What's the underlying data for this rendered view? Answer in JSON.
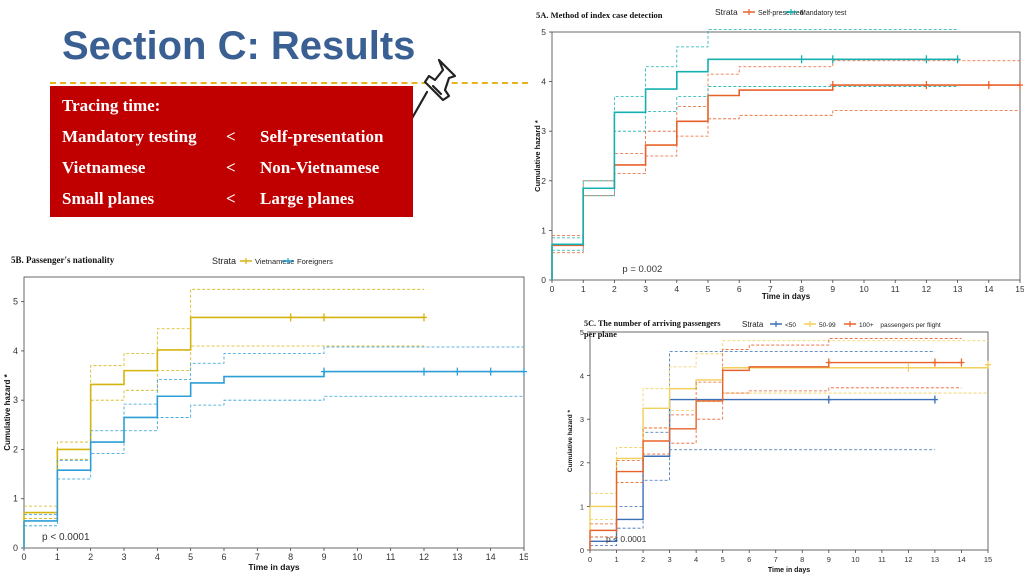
{
  "slide": {
    "title": "Section C: Results",
    "summary": {
      "heading": "Tracing time:",
      "rows": [
        {
          "left": "Mandatory testing",
          "op": "<",
          "right": "Self-presentation"
        },
        {
          "left": "Vietnamese",
          "op": "<",
          "right": "Non-Vietnamese"
        },
        {
          "left": "Small planes",
          "op": "<",
          "right": "Large planes"
        }
      ]
    },
    "colors": {
      "title": "#3a5f93",
      "box": "#c00000",
      "divider": "#e9b21c"
    }
  },
  "chart_data": [
    {
      "id": "5A",
      "type": "line",
      "step": true,
      "title": "5A. Method of index case detection",
      "legend_title": "Strata",
      "legend_position": "top",
      "xlabel": "Time in days",
      "ylabel": "Cumulative hazard *",
      "xlim": [
        0,
        15
      ],
      "ylim": [
        0,
        5
      ],
      "xticks": [
        0,
        1,
        2,
        3,
        4,
        5,
        6,
        7,
        8,
        9,
        10,
        11,
        12,
        13,
        14,
        15
      ],
      "yticks": [
        0,
        1,
        2,
        3,
        4,
        5
      ],
      "annotation": "p = 0.002",
      "series": [
        {
          "name": "Self-presented",
          "color": "#e8622c",
          "x": [
            0,
            1,
            2,
            3,
            4,
            5,
            6,
            9,
            15
          ],
          "y": [
            0.7,
            1.85,
            2.32,
            2.72,
            3.2,
            3.72,
            3.83,
            3.93,
            3.93
          ],
          "lower": [
            0.55,
            1.7,
            2.15,
            2.5,
            2.9,
            3.25,
            3.32,
            3.42,
            3.42
          ],
          "upper": [
            0.9,
            2.0,
            2.55,
            3.0,
            3.5,
            4.15,
            4.3,
            4.42,
            4.42
          ],
          "censor": [
            9,
            12,
            14,
            15
          ]
        },
        {
          "name": "Mandatory test",
          "color": "#17b0b0",
          "x": [
            0,
            1,
            2,
            3,
            4,
            5,
            13
          ],
          "y": [
            0.72,
            1.85,
            3.38,
            3.85,
            4.2,
            4.45,
            4.45
          ],
          "lower": [
            0.6,
            1.7,
            3.0,
            3.4,
            3.7,
            3.9,
            3.9
          ],
          "upper": [
            0.85,
            2.0,
            3.7,
            4.3,
            4.7,
            5.05,
            5.05
          ],
          "censor": [
            8,
            9,
            12,
            13
          ]
        }
      ]
    },
    {
      "id": "5B",
      "type": "line",
      "step": true,
      "title": "5B. Passenger's nationality",
      "legend_title": "Strata",
      "legend_position": "top",
      "xlabel": "Time in days",
      "ylabel": "Cumulative hazard *",
      "xlim": [
        0,
        15
      ],
      "ylim": [
        0,
        5.5
      ],
      "xticks": [
        0,
        1,
        2,
        3,
        4,
        5,
        6,
        7,
        8,
        9,
        10,
        11,
        12,
        13,
        14,
        15
      ],
      "yticks": [
        0,
        1,
        2,
        3,
        4,
        5
      ],
      "annotation": "p < 0.0001",
      "series": [
        {
          "name": "Vietnamese",
          "color": "#d6b40f",
          "x": [
            0,
            1,
            2,
            3,
            4,
            5,
            12
          ],
          "y": [
            0.72,
            2.0,
            3.32,
            3.6,
            4.02,
            4.68,
            4.68
          ],
          "lower": [
            0.6,
            1.8,
            3.0,
            3.2,
            3.6,
            4.1,
            4.1
          ],
          "upper": [
            0.85,
            2.15,
            3.7,
            3.95,
            4.45,
            5.25,
            5.25
          ],
          "censor": [
            8,
            9,
            12
          ]
        },
        {
          "name": "Foreigners",
          "color": "#2e9fd6",
          "x": [
            0,
            1,
            2,
            3,
            4,
            5,
            6,
            9,
            15
          ],
          "y": [
            0.55,
            1.58,
            2.15,
            2.65,
            3.08,
            3.35,
            3.48,
            3.58,
            3.58
          ],
          "lower": [
            0.45,
            1.4,
            1.92,
            2.38,
            2.65,
            2.9,
            3.0,
            3.08,
            3.08
          ],
          "upper": [
            0.68,
            1.78,
            2.38,
            2.92,
            3.42,
            3.75,
            3.95,
            4.08,
            4.08
          ],
          "censor": [
            9,
            12,
            13,
            14,
            15
          ]
        }
      ]
    },
    {
      "id": "5C",
      "type": "line",
      "step": true,
      "title": "5C. The number of arriving passengers per plane",
      "legend_title": "Strata",
      "legend_position": "top",
      "legend_suffix": "passengers per flight",
      "xlabel": "Time in days",
      "ylabel": "Cumulative hazard *",
      "xlim": [
        0,
        15
      ],
      "ylim": [
        0,
        5
      ],
      "xticks": [
        0,
        1,
        2,
        3,
        4,
        5,
        6,
        7,
        8,
        9,
        10,
        11,
        12,
        13,
        14,
        15
      ],
      "yticks": [
        0,
        1,
        2,
        3,
        4,
        5
      ],
      "annotation": "p < 0.0001",
      "series": [
        {
          "name": "<50",
          "color": "#3b6fb5",
          "x": [
            0,
            1,
            2,
            3,
            13
          ],
          "y": [
            0.2,
            0.7,
            2.15,
            3.45,
            3.45
          ],
          "lower": [
            0.1,
            0.5,
            1.6,
            2.3,
            2.3
          ],
          "upper": [
            0.3,
            1.0,
            2.7,
            4.55,
            4.55
          ],
          "censor": [
            9,
            13
          ]
        },
        {
          "name": "50-99",
          "color": "#f0cf5a",
          "x": [
            0,
            1,
            2,
            3,
            4,
            5,
            15
          ],
          "y": [
            1.0,
            2.1,
            3.25,
            3.7,
            3.9,
            4.18,
            4.25
          ],
          "lower": [
            0.7,
            1.8,
            2.8,
            3.2,
            3.4,
            3.6,
            3.6
          ],
          "upper": [
            1.3,
            2.35,
            3.7,
            4.2,
            4.5,
            4.8,
            4.8
          ],
          "censor": [
            12,
            15
          ]
        },
        {
          "name": "100+",
          "color": "#e8622c",
          "x": [
            0,
            1,
            2,
            3,
            4,
            5,
            6,
            9,
            14
          ],
          "y": [
            0.45,
            1.8,
            2.5,
            2.78,
            3.42,
            4.12,
            4.2,
            4.3,
            4.3
          ],
          "lower": [
            0.3,
            1.55,
            2.2,
            2.45,
            3.0,
            3.6,
            3.65,
            3.72,
            3.72
          ],
          "upper": [
            0.6,
            2.05,
            2.8,
            3.1,
            3.85,
            4.6,
            4.7,
            4.85,
            4.85
          ],
          "censor": [
            9,
            13,
            14
          ]
        }
      ]
    }
  ]
}
